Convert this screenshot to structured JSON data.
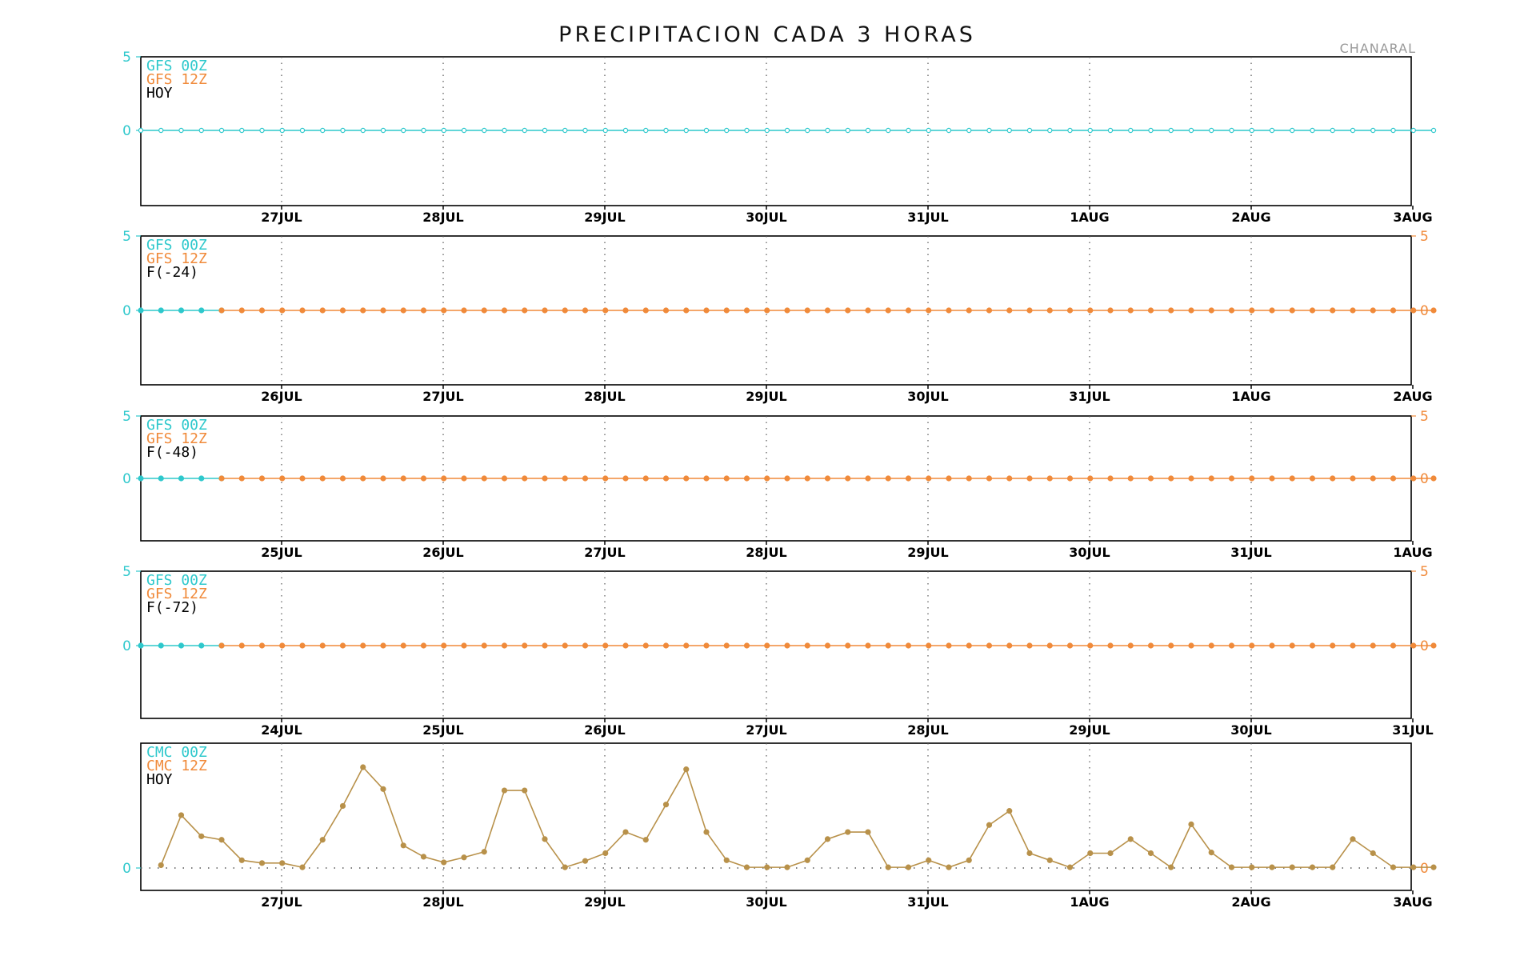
{
  "title": "PRECIPITACION CADA 3 HORAS",
  "station": "CHANARAL",
  "colors": {
    "c00": "#2ec8cc",
    "c12": "#f08a3a",
    "mixed": "#b8914a",
    "text": "#000000",
    "frame": "#000000"
  },
  "chart_data": [
    {
      "type": "line",
      "ylim": [
        -5,
        5
      ],
      "left_ticks": [
        "5",
        "0"
      ],
      "right_ticks": [],
      "right_color": "c12",
      "xticks": [
        "27JUL",
        "28JUL",
        "29JUL",
        "30JUL",
        "31JUL",
        "1AUG",
        "2AUG",
        "3AUG"
      ],
      "legend": [
        {
          "text": "GFS 00Z",
          "color": "c00"
        },
        {
          "text": "GFS 12Z",
          "color": "c12"
        },
        {
          "text": "HOY",
          "color": "text"
        }
      ],
      "series": [
        {
          "color": "c00",
          "start_step": 0,
          "values": [
            0,
            0,
            0,
            0,
            0,
            0,
            0,
            0,
            0,
            0,
            0,
            0,
            0,
            0,
            0,
            0,
            0,
            0,
            0,
            0,
            0,
            0,
            0,
            0,
            0,
            0,
            0,
            0,
            0,
            0,
            0,
            0,
            0,
            0,
            0,
            0,
            0,
            0,
            0,
            0,
            0,
            0,
            0,
            0,
            0,
            0,
            0,
            0,
            0,
            0,
            0,
            0,
            0,
            0,
            0,
            0,
            0,
            0,
            0,
            0,
            0,
            0,
            0,
            0,
            0
          ],
          "open": true
        }
      ]
    },
    {
      "type": "line",
      "ylim": [
        -5,
        5
      ],
      "left_ticks": [
        "5",
        "0"
      ],
      "right_ticks": [
        "5",
        "0"
      ],
      "right_color": "c12",
      "xticks": [
        "26JUL",
        "27JUL",
        "28JUL",
        "29JUL",
        "30JUL",
        "31JUL",
        "1AUG",
        "2AUG"
      ],
      "legend": [
        {
          "text": "GFS 00Z",
          "color": "c00"
        },
        {
          "text": "GFS 12Z",
          "color": "c12"
        },
        {
          "text": "F(-24)",
          "color": "text"
        }
      ],
      "series": [
        {
          "color": "c00",
          "start_step": 0,
          "values": [
            0,
            0,
            0,
            0,
            0
          ]
        },
        {
          "color": "c12",
          "start_step": 4,
          "values": [
            0,
            0,
            0,
            0,
            0,
            0,
            0,
            0,
            0,
            0,
            0,
            0,
            0,
            0,
            0,
            0,
            0,
            0,
            0,
            0,
            0,
            0,
            0,
            0,
            0,
            0,
            0,
            0,
            0,
            0,
            0,
            0,
            0,
            0,
            0,
            0,
            0,
            0,
            0,
            0,
            0,
            0,
            0,
            0,
            0,
            0,
            0,
            0,
            0,
            0,
            0,
            0,
            0,
            0,
            0,
            0,
            0,
            0,
            0,
            0,
            0
          ]
        }
      ]
    },
    {
      "type": "line",
      "ylim": [
        -5,
        5
      ],
      "left_ticks": [
        "5",
        "0"
      ],
      "right_ticks": [
        "5",
        "0"
      ],
      "right_color": "c12",
      "xticks": [
        "25JUL",
        "26JUL",
        "27JUL",
        "28JUL",
        "29JUL",
        "30JUL",
        "31JUL",
        "1AUG"
      ],
      "legend": [
        {
          "text": "GFS 00Z",
          "color": "c00"
        },
        {
          "text": "GFS 12Z",
          "color": "c12"
        },
        {
          "text": "F(-48)",
          "color": "text"
        }
      ],
      "series": [
        {
          "color": "c00",
          "start_step": 0,
          "values": [
            0,
            0,
            0,
            0,
            0
          ]
        },
        {
          "color": "c12",
          "start_step": 4,
          "values": [
            0,
            0,
            0,
            0,
            0,
            0,
            0,
            0,
            0,
            0,
            0,
            0,
            0,
            0,
            0,
            0,
            0,
            0,
            0,
            0,
            0,
            0,
            0,
            0,
            0,
            0,
            0,
            0,
            0,
            0,
            0,
            0,
            0,
            0,
            0,
            0,
            0,
            0,
            0,
            0,
            0,
            0,
            0,
            0,
            0,
            0,
            0,
            0,
            0,
            0,
            0,
            0,
            0,
            0,
            0,
            0,
            0,
            0,
            0,
            0,
            0
          ]
        }
      ]
    },
    {
      "type": "line",
      "ylim": [
        -5,
        5
      ],
      "left_ticks": [
        "5",
        "0"
      ],
      "right_ticks": [
        "5",
        "0"
      ],
      "right_color": "c12",
      "xticks": [
        "24JUL",
        "25JUL",
        "26JUL",
        "27JUL",
        "28JUL",
        "29JUL",
        "30JUL",
        "31JUL"
      ],
      "legend": [
        {
          "text": "GFS 00Z",
          "color": "c00"
        },
        {
          "text": "GFS 12Z",
          "color": "c12"
        },
        {
          "text": "F(-72)",
          "color": "text"
        }
      ],
      "series": [
        {
          "color": "c00",
          "start_step": 0,
          "values": [
            0,
            0,
            0,
            0,
            0
          ]
        },
        {
          "color": "c12",
          "start_step": 4,
          "values": [
            0,
            0,
            0,
            0,
            0,
            0,
            0,
            0,
            0,
            0,
            0,
            0,
            0,
            0,
            0,
            0,
            0,
            0,
            0,
            0,
            0,
            0,
            0,
            0,
            0,
            0,
            0,
            0,
            0,
            0,
            0,
            0,
            0,
            0,
            0,
            0,
            0,
            0,
            0,
            0,
            0,
            0,
            0,
            0,
            0,
            0,
            0,
            0,
            0,
            0,
            0,
            0,
            0,
            0,
            0,
            0,
            0,
            0,
            0,
            0,
            0
          ]
        }
      ]
    },
    {
      "type": "line",
      "ylim": [
        -0.35,
        1.45
      ],
      "left_ticks": [
        "0"
      ],
      "right_ticks": [
        "0"
      ],
      "right_color": "c12",
      "zero_dotted": true,
      "xticks": [
        "27JUL",
        "28JUL",
        "29JUL",
        "30JUL",
        "31JUL",
        "1AUG",
        "2AUG",
        "3AUG"
      ],
      "legend": [
        {
          "text": "CMC 00Z",
          "color": "c00"
        },
        {
          "text": "CMC 12Z",
          "color": "c12"
        },
        {
          "text": "HOY",
          "color": "text"
        }
      ],
      "series": [
        {
          "color": "mixed",
          "start_step": 1,
          "values": [
            0.04,
            0.75,
            0.45,
            0.4,
            0.11,
            0.07,
            0.07,
            0.01,
            0.4,
            0.88,
            1.43,
            1.12,
            0.32,
            0.16,
            0.08,
            0.15,
            0.23,
            1.1,
            1.1,
            0.41,
            0.01,
            0.1,
            0.21,
            0.51,
            0.4,
            0.9,
            1.4,
            0.51,
            0.11,
            0.01,
            0.01,
            0.01,
            0.11,
            0.41,
            0.51,
            0.51,
            0.01,
            0.01,
            0.11,
            0.01,
            0.11,
            0.61,
            0.81,
            0.21,
            0.11,
            0.01,
            0.21,
            0.21,
            0.41,
            0.21,
            0.01,
            0.62,
            0.22,
            0.01,
            0.01,
            0.01,
            0.01,
            0.01,
            0.01,
            0.41,
            0.21,
            0.01,
            0.01,
            0.01
          ]
        }
      ]
    }
  ]
}
